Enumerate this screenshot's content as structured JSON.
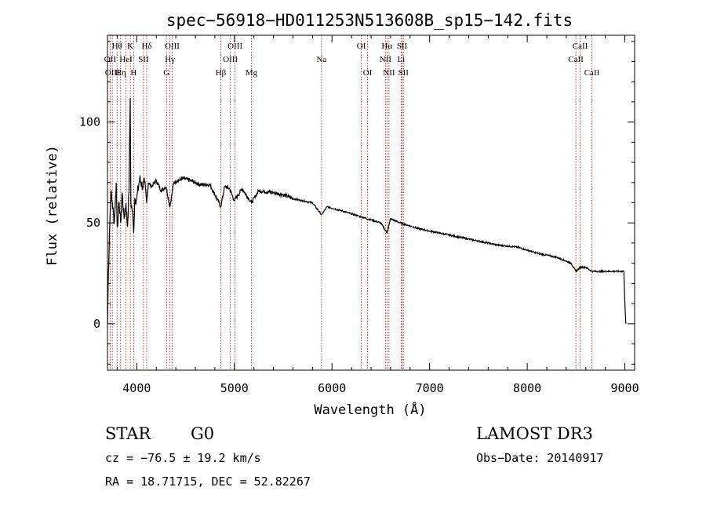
{
  "chart_data": {
    "type": "line",
    "title": "spec−56918−HD011253N513608B_sp15−142.fits",
    "xlabel": "Wavelength (Å)",
    "ylabel": "Flux (relative)",
    "xlim": [
      3700,
      9100
    ],
    "ylim": [
      -23,
      143
    ],
    "xticks": [
      4000,
      5000,
      6000,
      7000,
      8000,
      9000
    ],
    "yticks": [
      0,
      50,
      100
    ],
    "series": [
      {
        "name": "spectrum",
        "x": [
          3700,
          3710,
          3720,
          3735,
          3750,
          3770,
          3790,
          3800,
          3820,
          3835,
          3850,
          3870,
          3890,
          3905,
          3920,
          3933,
          3940,
          3955,
          3968,
          3980,
          4000,
          4030,
          4060,
          4080,
          4101,
          4120,
          4150,
          4200,
          4250,
          4300,
          4340,
          4380,
          4420,
          4480,
          4550,
          4650,
          4750,
          4861,
          4900,
          4950,
          5000,
          5080,
          5175,
          5250,
          5400,
          5500,
          5600,
          5700,
          5800,
          5893,
          5950,
          6100,
          6300,
          6500,
          6563,
          6600,
          6700,
          6900,
          7100,
          7300,
          7500,
          7700,
          7900,
          8100,
          8300,
          8450,
          8498,
          8542,
          8600,
          8662,
          8750,
          8850,
          8950,
          8990,
          9000,
          9010
        ],
        "y": [
          0,
          25,
          45,
          65,
          60,
          50,
          70,
          48,
          60,
          50,
          65,
          52,
          60,
          48,
          65,
          112,
          60,
          56,
          45,
          62,
          62,
          72,
          68,
          70,
          60,
          70,
          68,
          71,
          66,
          68,
          58,
          70,
          71,
          72,
          71,
          69,
          69,
          58,
          68,
          67,
          61,
          67,
          60,
          66,
          65,
          64,
          62,
          61,
          60,
          54,
          58,
          56,
          53,
          50,
          45,
          52,
          50,
          47,
          45,
          43,
          41,
          39,
          38,
          35,
          33,
          30,
          26,
          28,
          28,
          26,
          26,
          26,
          26,
          26,
          10,
          0
        ]
      }
    ],
    "spectral_lines": [
      {
        "name": "Hθ",
        "x": 3798,
        "row": 0
      },
      {
        "name": "K",
        "x": 3934,
        "row": 0
      },
      {
        "name": "Hδ",
        "x": 4102,
        "row": 0
      },
      {
        "name": "OIII",
        "x": 4363,
        "row": 0
      },
      {
        "name": "OIII",
        "x": 5007,
        "row": 0
      },
      {
        "name": "OI",
        "x": 6300,
        "row": 0
      },
      {
        "name": "Hα",
        "x": 6563,
        "row": 0
      },
      {
        "name": "SII",
        "x": 6717,
        "row": 0
      },
      {
        "name": "CaII",
        "x": 8542,
        "row": 0
      },
      {
        "name": "OII",
        "x": 3727,
        "row": 1
      },
      {
        "name": "HeI",
        "x": 3889,
        "row": 1
      },
      {
        "name": "SII",
        "x": 4069,
        "row": 1
      },
      {
        "name": "Hγ",
        "x": 4340,
        "row": 1
      },
      {
        "name": "OIII",
        "x": 4959,
        "row": 1
      },
      {
        "name": "Na",
        "x": 5893,
        "row": 1
      },
      {
        "name": "NII",
        "x": 6548,
        "row": 1
      },
      {
        "name": "Li",
        "x": 6708,
        "row": 1
      },
      {
        "name": "CaII",
        "x": 8498,
        "row": 1
      },
      {
        "name": "OIII",
        "x": 3750,
        "row": 2
      },
      {
        "name": "Hη",
        "x": 3835,
        "row": 2
      },
      {
        "name": "H",
        "x": 3968,
        "row": 2
      },
      {
        "name": "G",
        "x": 4305,
        "row": 2
      },
      {
        "name": "Hβ",
        "x": 4861,
        "row": 2
      },
      {
        "name": "Mg",
        "x": 5175,
        "row": 2
      },
      {
        "name": "OI",
        "x": 6364,
        "row": 2
      },
      {
        "name": "NII",
        "x": 6584,
        "row": 2
      },
      {
        "name": "SII",
        "x": 6731,
        "row": 2
      },
      {
        "name": "CaII",
        "x": 8662,
        "row": 2
      }
    ]
  },
  "info": {
    "object_class": "STAR",
    "subclass": "G0",
    "survey": "LAMOST DR3",
    "cz": "cz = −76.5 ± 19.2 km/s",
    "obs_date": "Obs−Date: 20140917",
    "coords": "RA =  18.71715, DEC =  52.82267"
  },
  "colors": {
    "line": "#000000",
    "marker": "#cc0000",
    "background": "#ffffff"
  }
}
